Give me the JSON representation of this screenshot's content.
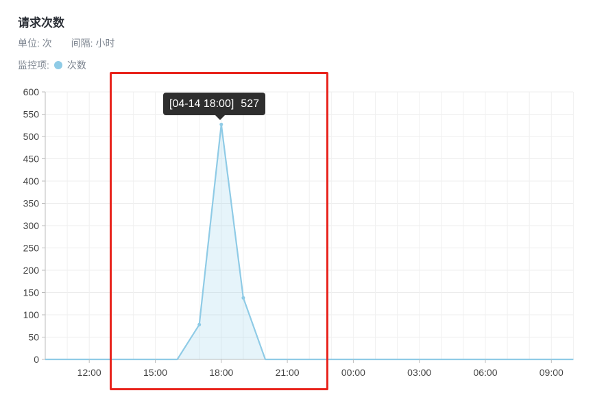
{
  "title": "请求次数",
  "unit_label": "单位: 次",
  "interval_label": "间隔: 小时",
  "legend_prefix": "监控项:",
  "legend_item": "次数",
  "tooltip": {
    "time": "[04-14 18:00]",
    "value": "527"
  },
  "colors": {
    "series": "#8fcbe6",
    "highlight_box": "#e8231c"
  },
  "chart_data": {
    "type": "area",
    "title": "请求次数",
    "xlabel": "",
    "ylabel": "",
    "ylim": [
      0,
      600
    ],
    "yticks": [
      0,
      50,
      100,
      150,
      200,
      250,
      300,
      350,
      400,
      450,
      500,
      550,
      600
    ],
    "grid": true,
    "x_tick_labels": [
      "12:00",
      "15:00",
      "18:00",
      "21:00",
      "00:00",
      "03:00",
      "06:00",
      "09:00"
    ],
    "series": [
      {
        "name": "次数",
        "x": [
          "10:00",
          "11:00",
          "12:00",
          "13:00",
          "14:00",
          "15:00",
          "16:00",
          "17:00",
          "18:00",
          "19:00",
          "20:00",
          "21:00",
          "22:00",
          "23:00",
          "00:00",
          "01:00",
          "02:00",
          "03:00",
          "04:00",
          "05:00",
          "06:00",
          "07:00",
          "08:00",
          "09:00",
          "10:00"
        ],
        "values": [
          0,
          0,
          0,
          0,
          0,
          0,
          0,
          78,
          527,
          138,
          0,
          0,
          0,
          0,
          0,
          0,
          0,
          0,
          0,
          0,
          0,
          0,
          0,
          0,
          0
        ]
      }
    ]
  }
}
